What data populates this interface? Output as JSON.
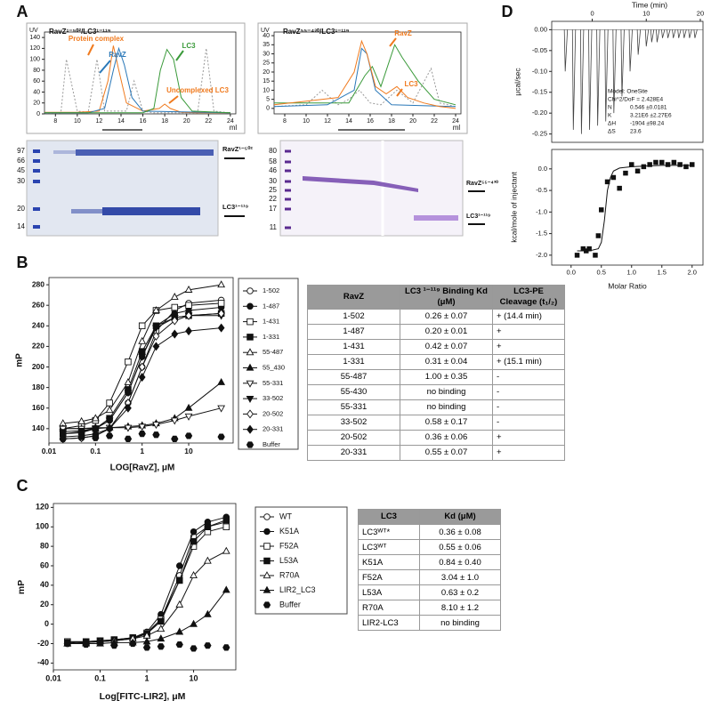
{
  "panel_labels": [
    "A",
    "B",
    "C",
    "D"
  ],
  "panel_a": {
    "left": {
      "type": "line",
      "axis_label": "UV",
      "title": "RavZ¹⁻⁵⁰²/LC3¹⁻¹¹⁹",
      "xlabel": "ml",
      "xlim": [
        7,
        24.5
      ],
      "ylim": [
        0,
        150
      ],
      "xticks": [
        8,
        10,
        12,
        14,
        16,
        18,
        20,
        22,
        24
      ],
      "yticks": [
        0,
        20,
        40,
        60,
        80,
        100,
        120,
        140
      ],
      "annotations": [
        {
          "text": "Protein complex",
          "color": "#f07a1e"
        },
        {
          "text": "RavZ",
          "color": "#2a78b8"
        },
        {
          "text": "LC3",
          "color": "#3a9a3a"
        },
        {
          "text": "Uncomplexed LC3",
          "color": "#f07a1e"
        }
      ],
      "series": [
        {
          "color": "#999999",
          "line": "dotted",
          "x": [
            7,
            8.5,
            9,
            10,
            11,
            11.8,
            12.5,
            14.5,
            15.2,
            16,
            17,
            21,
            21.8,
            22.5,
            24
          ],
          "values": [
            2,
            2,
            100,
            5,
            3,
            100,
            5,
            5,
            60,
            5,
            2,
            2,
            120,
            5,
            2
          ]
        },
        {
          "color": "#f07a1e",
          "line": "solid",
          "x": [
            7,
            10,
            12,
            12.8,
            13.3,
            13.8,
            14.5,
            16,
            17.5,
            18,
            18.5,
            19.5,
            21,
            24
          ],
          "values": [
            3,
            3,
            5,
            60,
            125,
            80,
            20,
            5,
            10,
            18,
            10,
            3,
            2,
            2
          ]
        },
        {
          "color": "#2a78b8",
          "line": "solid",
          "x": [
            7,
            11,
            12.5,
            13.3,
            13.8,
            14.3,
            15,
            16,
            24
          ],
          "values": [
            2,
            2,
            10,
            80,
            120,
            90,
            30,
            5,
            2
          ]
        },
        {
          "color": "#3a9a3a",
          "line": "solid",
          "x": [
            7,
            16,
            17,
            17.6,
            18.2,
            18.8,
            19.5,
            20.5,
            24
          ],
          "values": [
            2,
            2,
            10,
            80,
            118,
            100,
            30,
            5,
            2
          ]
        }
      ]
    },
    "right": {
      "type": "line",
      "axis_label": "UV",
      "title": "RavZ⁵⁵⁻⁴³⁰/LC3¹⁻¹¹⁹",
      "xlabel": "ml",
      "xlim": [
        7,
        24.5
      ],
      "ylim": [
        -3,
        42
      ],
      "xticks": [
        8,
        10,
        12,
        14,
        16,
        18,
        20,
        22,
        24
      ],
      "yticks": [
        0,
        5,
        10,
        15,
        20,
        25,
        30,
        35,
        40
      ],
      "annotations": [
        {
          "text": "RavZ",
          "color": "#f07a1e"
        },
        {
          "text": "LC3",
          "color": "#f07a1e"
        }
      ],
      "series": [
        {
          "color": "#999999",
          "line": "dotted",
          "x": [
            7,
            10,
            11.5,
            13,
            14,
            15,
            16,
            17,
            18.5,
            20,
            21.7,
            22.5,
            24
          ],
          "values": [
            1,
            2,
            10,
            2,
            5,
            10,
            3,
            2,
            10,
            3,
            22,
            3,
            1
          ]
        },
        {
          "color": "#3a9a3a",
          "line": "solid",
          "x": [
            7,
            14,
            15.5,
            16.2,
            17,
            18.3,
            19,
            20.5,
            22,
            24
          ],
          "values": [
            3,
            3,
            18,
            23,
            12,
            35,
            28,
            15,
            5,
            2
          ]
        },
        {
          "color": "#2a78b8",
          "line": "solid",
          "x": [
            7,
            12,
            14.5,
            15.2,
            15.7,
            16.5,
            18,
            24
          ],
          "values": [
            1,
            2,
            10,
            33,
            30,
            10,
            2,
            1
          ]
        },
        {
          "color": "#f07a1e",
          "line": "solid",
          "x": [
            7,
            10,
            13,
            14.5,
            15.2,
            15.7,
            16.5,
            17.5,
            18.5,
            19.5,
            21,
            22.5,
            24
          ],
          "values": [
            2,
            4,
            6,
            20,
            37,
            30,
            12,
            8,
            12,
            6,
            3,
            1,
            0
          ]
        }
      ]
    },
    "left_gel": {
      "ladder": [
        97,
        66,
        45,
        30,
        20,
        14
      ],
      "band_labels": [
        "RavZ¹⁻⁵⁰²",
        "LC3¹⁻¹¹⁹"
      ]
    },
    "right_gel": {
      "ladder": [
        80,
        58,
        46,
        30,
        25,
        22,
        17,
        11
      ],
      "band_labels": [
        "RavZ⁵⁵⁻⁴³⁰",
        "LC3¹⁻¹¹⁹"
      ]
    }
  },
  "panel_b": {
    "chart": {
      "type": "scatter",
      "xlabel": "LOG[RavZ], μM",
      "ylabel": "mP",
      "log_x": true,
      "xlim": [
        0.01,
        90
      ],
      "ylim": [
        126,
        287
      ],
      "xticks": [
        0.01,
        0.1,
        1,
        10
      ],
      "yticks": [
        140,
        160,
        180,
        200,
        220,
        240,
        260,
        280
      ],
      "x": [
        0.02,
        0.05,
        0.1,
        0.2,
        0.5,
        1,
        2,
        5,
        10,
        50
      ],
      "series": [
        {
          "name": "1-502",
          "marker": "circle-open",
          "line": "solid",
          "color": "#111111",
          "values": [
            130,
            131,
            133,
            140,
            165,
            200,
            235,
            255,
            262,
            265
          ]
        },
        {
          "name": "1-487",
          "marker": "circle",
          "line": "solid",
          "color": "#111111",
          "values": [
            135,
            136,
            140,
            148,
            175,
            210,
            240,
            252,
            255,
            258
          ]
        },
        {
          "name": "1-431",
          "marker": "square-open",
          "line": "solid",
          "color": "#111111",
          "values": [
            140,
            143,
            148,
            165,
            205,
            240,
            255,
            258,
            260,
            262
          ]
        },
        {
          "name": "1-331",
          "marker": "square",
          "line": "solid",
          "color": "#111111",
          "values": [
            135,
            137,
            140,
            150,
            178,
            215,
            240,
            248,
            250,
            252
          ]
        },
        {
          "name": "55-487",
          "marker": "triangle-open",
          "line": "solid",
          "color": "#111111",
          "values": [
            145,
            147,
            150,
            158,
            185,
            225,
            255,
            268,
            275,
            280
          ]
        },
        {
          "name": "55_430",
          "marker": "triangle",
          "line": "solid",
          "color": "#111111",
          "values": [
            140,
            140,
            141,
            141,
            142,
            143,
            145,
            150,
            160,
            185
          ]
        },
        {
          "name": "55-331",
          "marker": "triangle-down-open",
          "line": "solid",
          "color": "#111111",
          "values": [
            140,
            140,
            140,
            141,
            141,
            142,
            144,
            148,
            152,
            160
          ]
        },
        {
          "name": "33-502",
          "marker": "triangle-down",
          "line": "solid",
          "color": "#111111",
          "values": [
            137,
            138,
            140,
            148,
            175,
            210,
            238,
            248,
            250,
            250
          ]
        },
        {
          "name": "20-502",
          "marker": "diamond-open",
          "line": "solid",
          "color": "#111111",
          "values": [
            130,
            131,
            133,
            140,
            165,
            200,
            230,
            245,
            250,
            252
          ]
        },
        {
          "name": "20-331",
          "marker": "diamond",
          "line": "solid",
          "color": "#111111",
          "values": [
            132,
            133,
            135,
            140,
            160,
            190,
            220,
            232,
            235,
            238
          ]
        },
        {
          "name": "Buffer",
          "marker": "hexagon",
          "line": "none",
          "color": "#111111",
          "values": [
            130,
            132,
            131,
            133,
            130,
            135,
            134,
            130,
            133,
            132
          ]
        }
      ]
    },
    "table": {
      "header": [
        "RavZ",
        "LC3 ¹⁻¹¹⁹ Binding Kd (μM)",
        "LC3-PE Cleavage (t₁/₂)"
      ],
      "rows": [
        [
          "1-502",
          "0.26 ± 0.07",
          "+  (14.4 min)"
        ],
        [
          "1-487",
          "0.20 ± 0.01",
          "+"
        ],
        [
          "1-431",
          "0.42 ± 0.07",
          "+"
        ],
        [
          "1-331",
          "0.31 ± 0.04",
          "+  (15.1 min)"
        ],
        [
          "55-487",
          "1.00 ± 0.35",
          "-"
        ],
        [
          "55-430",
          "no binding",
          "-"
        ],
        [
          "55-331",
          "no binding",
          "-"
        ],
        [
          "33-502",
          "0.58 ± 0.17",
          "-"
        ],
        [
          "20-502",
          "0.36 ± 0.06",
          "+"
        ],
        [
          "20-331",
          "0.55 ± 0.07",
          "+"
        ]
      ]
    }
  },
  "panel_c": {
    "chart": {
      "type": "scatter",
      "xlabel": "Log[FITC-LIR2], μM",
      "ylabel": "mP",
      "log_x": true,
      "xlim": [
        0.01,
        80
      ],
      "ylim": [
        -47,
        124
      ],
      "xticks": [
        0.01,
        0.1,
        1,
        10
      ],
      "yticks": [
        -40,
        -20,
        0,
        20,
        40,
        60,
        80,
        100,
        120
      ],
      "x": [
        0.02,
        0.05,
        0.1,
        0.2,
        0.5,
        1,
        2,
        5,
        10,
        20,
        50
      ],
      "series": [
        {
          "name": "WT",
          "marker": "circle-open",
          "line": "solid",
          "color": "#111111",
          "values": [
            -20,
            -19,
            -18,
            -17,
            -15,
            -10,
            5,
            50,
            90,
            100,
            105
          ]
        },
        {
          "name": "K51A",
          "marker": "circle",
          "line": "solid",
          "color": "#111111",
          "values": [
            -20,
            -19,
            -18,
            -17,
            -14,
            -8,
            10,
            60,
            95,
            105,
            110
          ]
        },
        {
          "name": "F52A",
          "marker": "square-open",
          "line": "solid",
          "color": "#111111",
          "values": [
            -18,
            -18,
            -17,
            -16,
            -14,
            -9,
            5,
            45,
            80,
            95,
            100
          ]
        },
        {
          "name": "L53A",
          "marker": "square",
          "line": "solid",
          "color": "#111111",
          "values": [
            -19,
            -18,
            -17,
            -16,
            -14,
            -10,
            3,
            45,
            85,
            100,
            107
          ]
        },
        {
          "name": "R70A",
          "marker": "triangle-open",
          "line": "solid",
          "color": "#111111",
          "values": [
            -20,
            -19,
            -18,
            -17,
            -15,
            -12,
            -5,
            20,
            50,
            65,
            75
          ]
        },
        {
          "name": "LIR2_LC3",
          "marker": "triangle",
          "line": "solid",
          "color": "#111111",
          "values": [
            -20,
            -20,
            -20,
            -19,
            -19,
            -18,
            -15,
            -8,
            0,
            10,
            35
          ]
        },
        {
          "name": "Buffer",
          "marker": "hexagon",
          "line": "none",
          "color": "#111111",
          "values": [
            -20,
            -21,
            -19,
            -22,
            -20,
            -24,
            -23,
            -21,
            -25,
            -22,
            -24
          ]
        }
      ]
    },
    "table": {
      "header": [
        "LC3",
        "Kd (μM)"
      ],
      "rows": [
        [
          "LC3ᵂᵀ*",
          "0.36 ± 0.08"
        ],
        [
          "LC3ᵂᵀ",
          "0.55 ± 0.06"
        ],
        [
          "K51A",
          "0.84 ± 0.40"
        ],
        [
          "F52A",
          "3.04 ± 1.0"
        ],
        [
          "L53A",
          "0.63 ± 0.2"
        ],
        [
          "R70A",
          "8.10 ± 1.2"
        ],
        [
          "LIR2-LC3",
          "no binding"
        ]
      ]
    }
  },
  "panel_d": {
    "thermogram": {
      "type": "spike",
      "xlabel": "Time (min)",
      "ylabel": "μcal/sec",
      "xlim": [
        -7.5,
        20.5
      ],
      "ylim": [
        -0.27,
        0.02
      ],
      "xticks": [
        0,
        10,
        20
      ],
      "yticks": [
        {
          "value": 0,
          "label": "0.00"
        },
        -0.05,
        {
          "value": -0.1,
          "label": "-0.10"
        },
        -0.15,
        {
          "value": -0.2,
          "label": "-0.20"
        },
        -0.25
      ],
      "series": [
        {
          "color": "#444444",
          "x": [
            -5,
            -3.5,
            -2,
            -0.5,
            1,
            2.5,
            4,
            5.5,
            7,
            8.5,
            10,
            11,
            12,
            13,
            14,
            15,
            16,
            17,
            18,
            19
          ],
          "values": [
            -0.1,
            -0.24,
            -0.25,
            -0.24,
            -0.23,
            -0.22,
            -0.2,
            -0.16,
            -0.1,
            -0.06,
            -0.04,
            -0.03,
            -0.03,
            -0.02,
            -0.02,
            -0.02,
            -0.02,
            -0.02,
            -0.02,
            -0.02
          ]
        }
      ],
      "model": [
        [
          "Model: OneSite",
          ""
        ],
        [
          "Chi^2/DoF = 2.428E4",
          ""
        ],
        [
          "N",
          "0.546 ±0.0181"
        ],
        [
          "K",
          "3.21E6 ±2.27E6"
        ],
        [
          "ΔH",
          "-1904 ±98.24"
        ],
        [
          "ΔS",
          "23.6"
        ]
      ]
    },
    "isotherm": {
      "type": "scatter",
      "xlabel": "Molar Ratio",
      "ylabel": "kcal/mole of injectant",
      "xlim": [
        -0.32,
        2.18
      ],
      "ylim": [
        -2.23,
        0.45
      ],
      "xticks": [
        {
          "value": 0,
          "label": "0.0"
        },
        0.5,
        {
          "value": 1,
          "label": "1.0"
        },
        1.5,
        {
          "value": 2,
          "label": "2.0"
        }
      ],
      "yticks": [
        {
          "value": 0,
          "label": "0.0"
        },
        -0.5,
        {
          "value": -1,
          "label": "-1.0"
        },
        -1.5,
        {
          "value": -2,
          "label": "-2.0"
        }
      ],
      "series": [
        {
          "marker": "square",
          "line": "none",
          "color": "#111111",
          "x": [
            0.1,
            0.2,
            0.25,
            0.3,
            0.4,
            0.45,
            0.5,
            0.6,
            0.7,
            0.8,
            0.9,
            1.0,
            1.1,
            1.2,
            1.3,
            1.4,
            1.5,
            1.6,
            1.7,
            1.8,
            1.9,
            2.0
          ],
          "values": [
            -2.0,
            -1.85,
            -1.9,
            -1.85,
            -2.0,
            -1.55,
            -0.95,
            -0.3,
            -0.2,
            -0.45,
            -0.1,
            0.1,
            -0.05,
            0.05,
            0.1,
            0.15,
            0.15,
            0.1,
            0.15,
            0.1,
            0.05,
            0.1
          ]
        },
        {
          "line": "solid",
          "color": "#111111",
          "x": [
            0.1,
            0.3,
            0.45,
            0.5,
            0.55,
            0.6,
            0.65,
            0.7,
            0.8,
            1.0,
            1.5,
            2.0
          ],
          "values": [
            -1.9,
            -1.9,
            -1.85,
            -1.7,
            -1.2,
            -0.5,
            -0.2,
            -0.05,
            0.02,
            0.05,
            0.08,
            0.08
          ]
        }
      ]
    }
  }
}
